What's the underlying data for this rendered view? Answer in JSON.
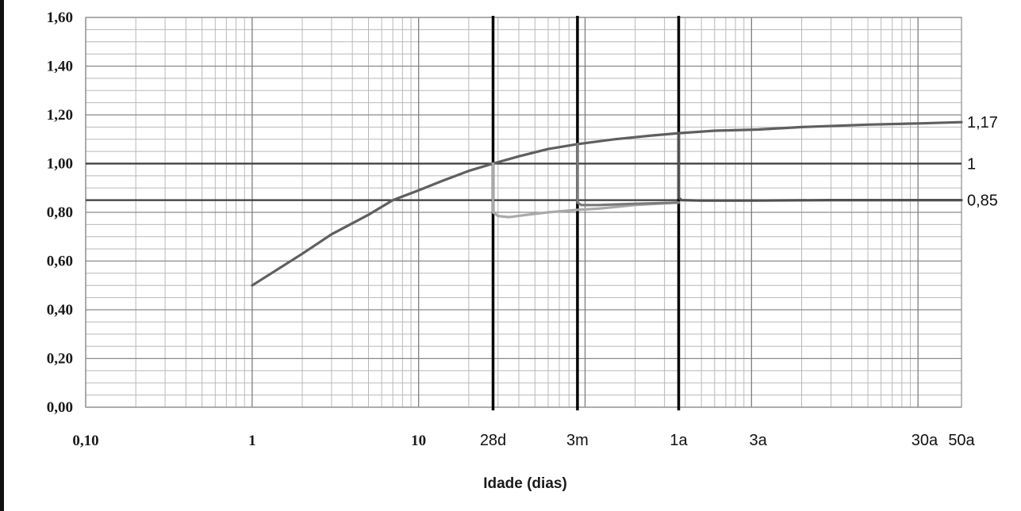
{
  "chart_data": {
    "type": "line",
    "xscale": "log",
    "xlim": [
      0.1,
      18250
    ],
    "ylim": [
      0,
      1.6
    ],
    "grid": true,
    "xlabel": "Idade (dias)",
    "ylabel": "",
    "yticks": [
      "0,00",
      "0,20",
      "0,40",
      "0,60",
      "0,80",
      "1,00",
      "1,20",
      "1,40",
      "1,60"
    ],
    "ytick_values": [
      0,
      0.2,
      0.4,
      0.6,
      0.8,
      1.0,
      1.2,
      1.4,
      1.6
    ],
    "xticks_numeric": [
      {
        "value": 0.1,
        "label": "0,10"
      },
      {
        "value": 1,
        "label": "1"
      },
      {
        "value": 10,
        "label": "10"
      }
    ],
    "xticks_named": [
      {
        "value": 28,
        "label": "28d"
      },
      {
        "value": 90,
        "label": "3m"
      },
      {
        "value": 365,
        "label": "1a"
      },
      {
        "value": 1095,
        "label": "3a"
      },
      {
        "value": 10950,
        "label": "30a"
      },
      {
        "value": 18250,
        "label": "50a"
      }
    ],
    "hlines": [
      {
        "y": 1.0,
        "label": "1"
      },
      {
        "y": 0.85,
        "label": "0,85"
      }
    ],
    "vlines": [
      28,
      90,
      365
    ],
    "end_labels": [
      {
        "y": 1.17,
        "label": "1,17"
      }
    ],
    "series": [
      {
        "color": "#5f5f5f",
        "x": [
          1,
          2,
          3,
          5,
          7,
          10,
          14,
          20,
          28,
          40,
          60,
          90,
          150,
          250,
          365,
          600,
          1095,
          2000,
          5000,
          10000,
          18250
        ],
        "y": [
          0.5,
          0.63,
          0.71,
          0.79,
          0.85,
          0.89,
          0.93,
          0.97,
          1.0,
          1.03,
          1.06,
          1.08,
          1.1,
          1.115,
          1.125,
          1.135,
          1.14,
          1.15,
          1.16,
          1.165,
          1.17
        ]
      },
      {
        "color": "#a9a9a9",
        "x": [
          28,
          28,
          30,
          35,
          45,
          60,
          90,
          120,
          200,
          365
        ],
        "y": [
          1.0,
          0.8,
          0.785,
          0.78,
          0.79,
          0.8,
          0.81,
          0.815,
          0.83,
          0.84
        ]
      },
      {
        "color": "#7a7a7a",
        "x": [
          90,
          90,
          95,
          120,
          200,
          365
        ],
        "y": [
          1.08,
          0.84,
          0.83,
          0.83,
          0.835,
          0.84
        ]
      },
      {
        "color": "#505050",
        "x": [
          365,
          365,
          380,
          500,
          1000,
          3000,
          10000,
          18250
        ],
        "y": [
          1.12,
          0.86,
          0.85,
          0.848,
          0.848,
          0.85,
          0.85,
          0.85
        ]
      }
    ]
  }
}
